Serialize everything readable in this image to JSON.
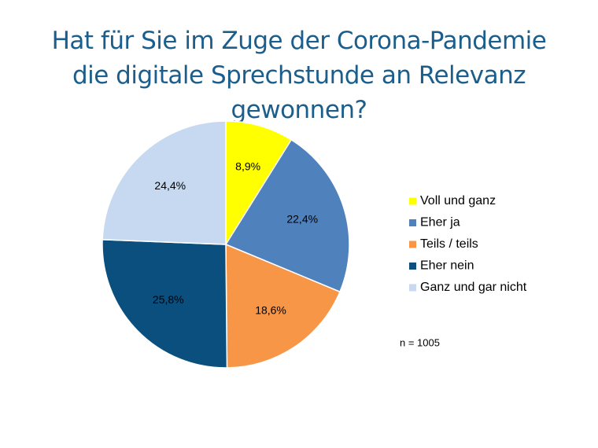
{
  "chart_data": {
    "type": "pie",
    "title": "Hat für Sie im Zuge der Corona-Pandemie die digitale Sprechstunde an Relevanz gewonnen?",
    "categories": [
      "Voll und ganz",
      "Eher ja",
      "Teils / teils",
      "Eher nein",
      "Ganz und gar nicht"
    ],
    "values": [
      8.9,
      22.4,
      18.6,
      25.8,
      24.4
    ],
    "value_labels": [
      "8,9%",
      "22,4%",
      "18,6%",
      "25,8%",
      "24,4%"
    ],
    "colors": [
      "#ffff00",
      "#4f81bd",
      "#f79646",
      "#0a4f7e",
      "#c6d9f1"
    ],
    "legend": "right",
    "annotation": "n = 1005"
  }
}
